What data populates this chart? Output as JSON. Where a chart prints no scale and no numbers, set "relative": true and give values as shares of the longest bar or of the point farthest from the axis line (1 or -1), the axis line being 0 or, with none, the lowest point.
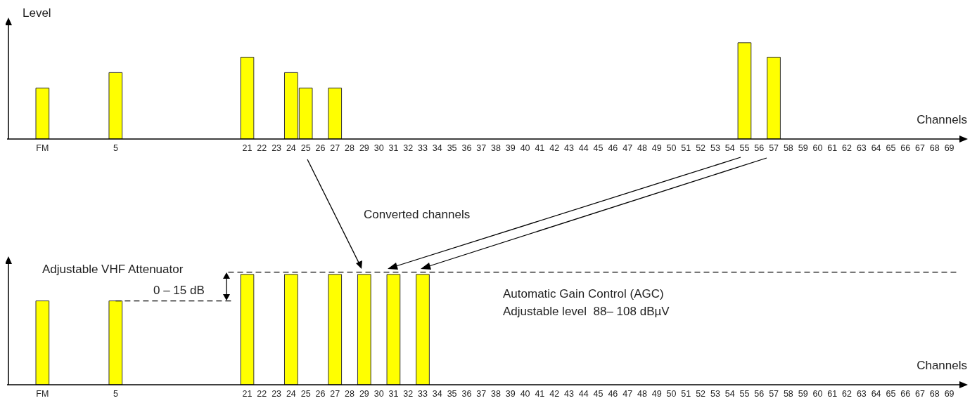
{
  "chart_data": [
    {
      "type": "bar",
      "ylabel": "Level",
      "xlabel": "Channels",
      "relative": true,
      "categories": [
        "FM",
        null,
        null,
        null,
        null,
        "5",
        null,
        null,
        null,
        null,
        null,
        null,
        null,
        null,
        "21",
        "22",
        "23",
        "24",
        "25",
        "26",
        "27",
        "28",
        "29",
        "30",
        "31",
        "32",
        "33",
        "34",
        "35",
        "36",
        "37",
        "38",
        "39",
        "40",
        "41",
        "42",
        "43",
        "44",
        "45",
        "46",
        "47",
        "48",
        "49",
        "50",
        "51",
        "52",
        "53",
        "54",
        "55",
        "56",
        "57",
        "58",
        "59",
        "60",
        "61",
        "62",
        "63",
        "64",
        "65",
        "66",
        "67",
        "68",
        "69"
      ],
      "color": "#ffff00",
      "values": [
        0.53,
        null,
        null,
        null,
        null,
        0.69,
        null,
        null,
        null,
        null,
        null,
        null,
        null,
        null,
        0.85,
        null,
        null,
        0.69,
        0.53,
        null,
        0.53,
        null,
        null,
        null,
        null,
        null,
        null,
        null,
        null,
        null,
        null,
        null,
        null,
        null,
        null,
        null,
        null,
        null,
        null,
        null,
        null,
        null,
        null,
        null,
        null,
        null,
        null,
        null,
        1,
        null,
        0.85,
        null,
        null,
        null,
        null,
        null,
        null,
        null,
        null,
        null,
        null,
        null,
        null
      ]
    },
    {
      "type": "bar",
      "xlabel": "Channels",
      "relative": true,
      "categories": [
        "FM",
        null,
        null,
        null,
        null,
        "5",
        null,
        null,
        null,
        null,
        null,
        null,
        null,
        null,
        "21",
        "22",
        "23",
        "24",
        "25",
        "26",
        "27",
        "28",
        "29",
        "30",
        "31",
        "32",
        "33",
        "34",
        "35",
        "36",
        "37",
        "38",
        "39",
        "40",
        "41",
        "42",
        "43",
        "44",
        "45",
        "46",
        "47",
        "48",
        "49",
        "50",
        "51",
        "52",
        "53",
        "54",
        "55",
        "56",
        "57",
        "58",
        "59",
        "60",
        "61",
        "62",
        "63",
        "64",
        "65",
        "66",
        "67",
        "68",
        "69"
      ],
      "series": [
        {
          "color": "#ffff00",
          "values": [
            0.76,
            null,
            null,
            null,
            null,
            0.76,
            null,
            null,
            null,
            null,
            null,
            null,
            null,
            null,
            1,
            null,
            null,
            1,
            null,
            null,
            1,
            null,
            1,
            null,
            1,
            null,
            1,
            null,
            null,
            null,
            null,
            null,
            null,
            null,
            null,
            null,
            null,
            null,
            null,
            null,
            null,
            null,
            null,
            null,
            null,
            null,
            null,
            null,
            null,
            null,
            null,
            null,
            null,
            null,
            null,
            null,
            null,
            null,
            null,
            null,
            null,
            null,
            null
          ]
        },
        {
          "type": "line",
          "line_style": "dashed",
          "color": "#000000",
          "values": [
            null,
            null,
            null,
            null,
            null,
            0.76,
            0.76,
            0.76,
            0.76,
            0.76,
            0.76,
            0.76,
            0.76,
            0.76,
            null,
            null,
            null,
            null,
            null,
            null,
            null,
            null,
            null,
            null,
            null,
            null,
            null,
            null,
            null,
            null,
            null,
            null,
            null,
            null,
            null,
            null,
            null,
            null,
            null,
            null,
            null,
            null,
            null,
            null,
            null,
            null,
            null,
            null,
            null,
            null,
            null,
            null,
            null,
            null,
            null,
            null,
            null,
            null,
            null,
            null,
            null,
            null,
            null
          ]
        }
      ],
      "ref_lines": [
        {
          "axis": "y",
          "value": 1.02,
          "line_style": "dashed",
          "color": "#000000"
        }
      ],
      "annotations": [
        "Converted channels",
        "Adjustable VHF Attenuator",
        "0 – 15 dB",
        "Automatic Gain Control (AGC)",
        "Adjustable level  88– 108 dBµV"
      ]
    }
  ]
}
